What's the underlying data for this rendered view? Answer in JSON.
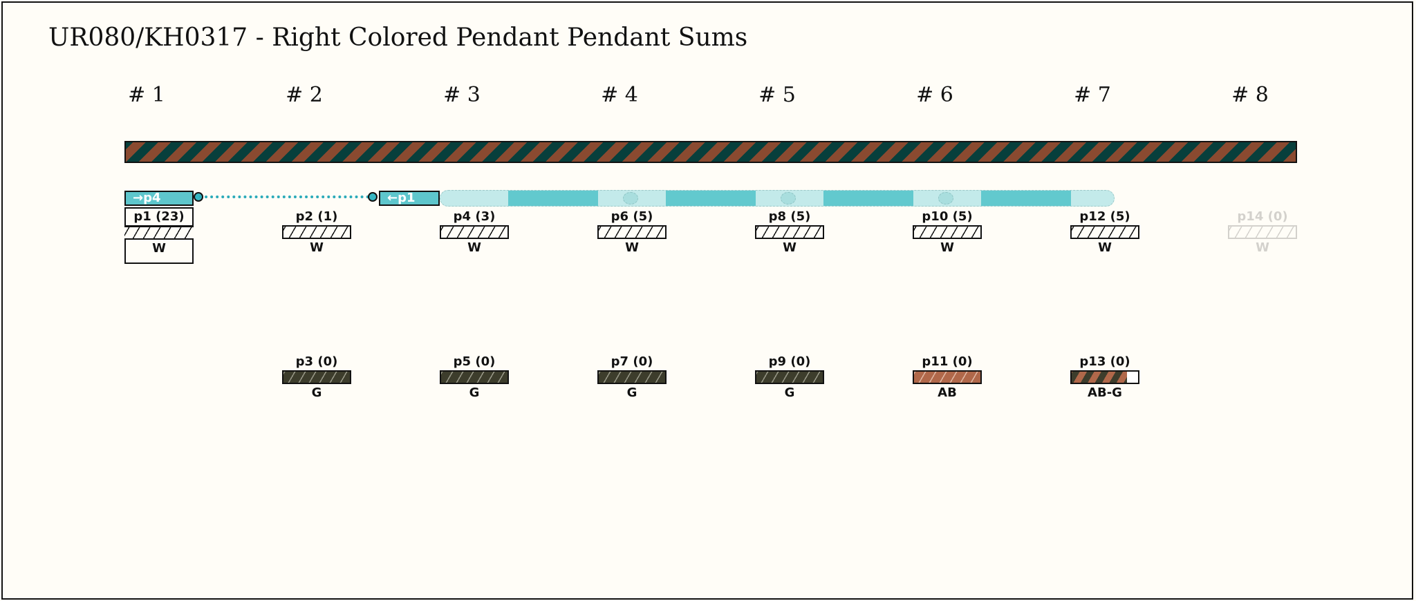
{
  "title": "UR080/KH0317 - Right Colored Pendant Pendant Sums",
  "groups": [
    "# 1",
    "# 2",
    "# 3",
    "# 4",
    "# 5",
    "# 6",
    "# 7",
    "# 8"
  ],
  "links": {
    "from_label": "→p4",
    "to_label": "←p1"
  },
  "colors": {
    "accent": "#5ec6cc",
    "cord_brown": "#8a4a30",
    "cord_teal": "#073f3c",
    "dark_g": "#3d3d2c",
    "ab": "#b0684a"
  },
  "top_pendants": [
    {
      "label": "p1 (23)",
      "color": "W",
      "swatch": "w"
    },
    {
      "label": "p2 (1)",
      "color": "W",
      "swatch": "w"
    },
    {
      "label": "p4 (3)",
      "color": "W",
      "swatch": "w"
    },
    {
      "label": "p6 (5)",
      "color": "W",
      "swatch": "w"
    },
    {
      "label": "p8 (5)",
      "color": "W",
      "swatch": "w"
    },
    {
      "label": "p10 (5)",
      "color": "W",
      "swatch": "w"
    },
    {
      "label": "p12 (5)",
      "color": "W",
      "swatch": "w"
    },
    {
      "label": "p14 (0)",
      "color": "W",
      "swatch": "w",
      "faded": true
    }
  ],
  "bottom_pendants": [
    {
      "label": "p3 (0)",
      "color": "G",
      "swatch": "g"
    },
    {
      "label": "p5 (0)",
      "color": "G",
      "swatch": "g"
    },
    {
      "label": "p7 (0)",
      "color": "G",
      "swatch": "g"
    },
    {
      "label": "p9 (0)",
      "color": "G",
      "swatch": "g"
    },
    {
      "label": "p11 (0)",
      "color": "AB",
      "swatch": "ab"
    },
    {
      "label": "p13 (0)",
      "color": "AB-G",
      "swatch": "abg"
    }
  ]
}
